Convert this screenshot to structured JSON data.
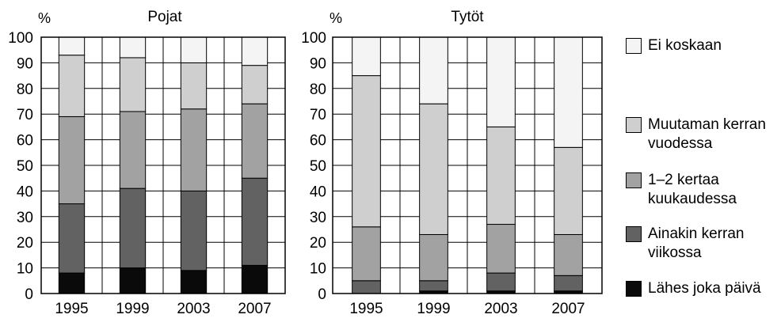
{
  "chart_data": [
    {
      "type": "bar",
      "stacked": true,
      "title": "Pojat",
      "ylabel": "%",
      "categories": [
        "1995",
        "1999",
        "2003",
        "2007"
      ],
      "yticks": [
        "0",
        "10",
        "20",
        "30",
        "40",
        "50",
        "60",
        "70",
        "80",
        "90",
        "100"
      ],
      "ylim": [
        0,
        100
      ],
      "grid": true,
      "series": [
        {
          "name": "Lähes joka päivä",
          "values": [
            8,
            10,
            9,
            11
          ]
        },
        {
          "name": "Ainakin kerran viikossa",
          "values": [
            27,
            31,
            31,
            34
          ]
        },
        {
          "name": "1–2 kertaa kuukaudessa",
          "values": [
            34,
            30,
            32,
            29
          ]
        },
        {
          "name": "Muutaman kerran vuodessa",
          "values": [
            24,
            21,
            18,
            15
          ]
        },
        {
          "name": "Ei koskaan",
          "values": [
            7,
            8,
            10,
            11
          ]
        }
      ]
    },
    {
      "type": "bar",
      "stacked": true,
      "title": "Tytöt",
      "ylabel": "%",
      "categories": [
        "1995",
        "1999",
        "2003",
        "2007"
      ],
      "yticks": [
        "0",
        "10",
        "20",
        "30",
        "40",
        "50",
        "60",
        "70",
        "80",
        "90",
        "100"
      ],
      "ylim": [
        0,
        100
      ],
      "grid": true,
      "series": [
        {
          "name": "Lähes joka päivä",
          "values": [
            0,
            1,
            1,
            1
          ]
        },
        {
          "name": "Ainakin kerran viikossa",
          "values": [
            5,
            4,
            7,
            6
          ]
        },
        {
          "name": "1–2 kertaa kuukaudessa",
          "values": [
            21,
            18,
            19,
            16
          ]
        },
        {
          "name": "Muutaman kerran vuodessa",
          "values": [
            59,
            51,
            38,
            34
          ]
        },
        {
          "name": "Ei koskaan",
          "values": [
            15,
            26,
            35,
            43
          ]
        }
      ]
    }
  ],
  "legend": [
    {
      "label": "Ei koskaan",
      "color": "#f4f4f4"
    },
    {
      "label": "Muutaman kerran vuodessa",
      "color": "#cfcfcf"
    },
    {
      "label": "1–2 kertaa kuukaudessa",
      "color": "#a2a2a2"
    },
    {
      "label": "Ainakin kerran viikossa",
      "color": "#626262"
    },
    {
      "label": "Lähes joka päivä",
      "color": "#0a0a0a"
    }
  ],
  "series_colors": [
    "#0a0a0a",
    "#626262",
    "#a2a2a2",
    "#cfcfcf",
    "#f4f4f4"
  ]
}
